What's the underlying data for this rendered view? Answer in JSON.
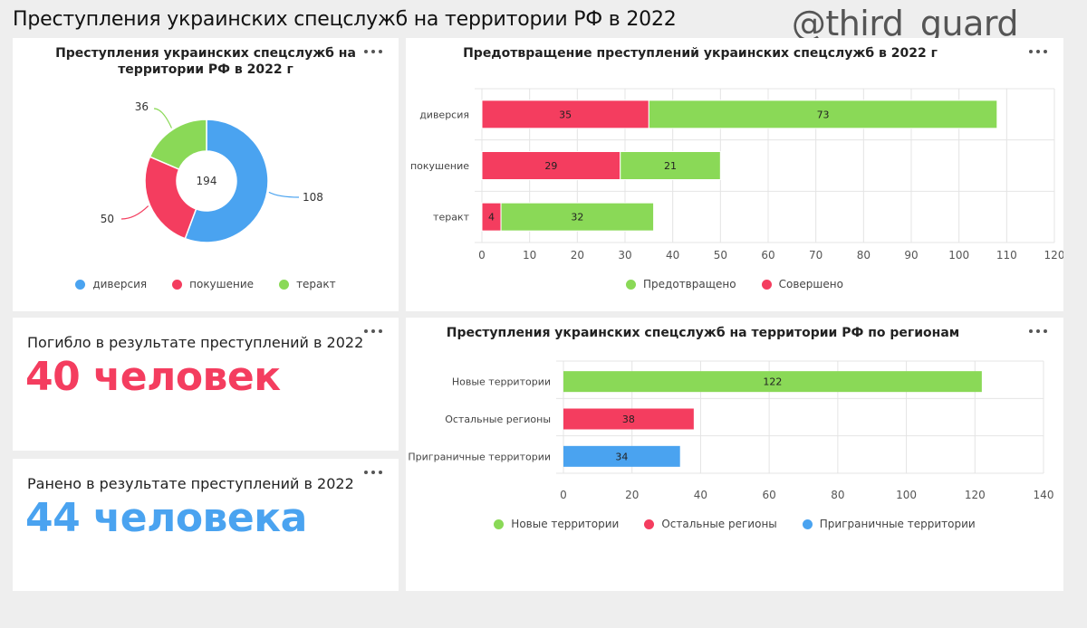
{
  "header": {
    "title": "Преступления украинских спецслужб на территории РФ в 2022",
    "watermark": "@third_guard"
  },
  "colors": {
    "blue": "#4aa3f0",
    "red": "#f43d5f",
    "green": "#8ad957"
  },
  "donut_card": {
    "title_line1": "Преступления украинских спецслужб на",
    "title_line2": "территории РФ в 2022 г",
    "total": "194",
    "legend": [
      "диверсия",
      "покушение",
      "теракт"
    ]
  },
  "stacked_card": {
    "title": "Предотвращение преступлений украинских спецслужб в 2022 г",
    "legend": [
      "Предотвращено",
      "Совершено"
    ]
  },
  "killed_card": {
    "label": "Погибло в результате преступлений в 2022",
    "value": "40 человек"
  },
  "wounded_card": {
    "label": "Ранено в результате преступлений в 2022",
    "value": "44 человека"
  },
  "regions_card": {
    "title": "Преступления украинских спецслужб на территории РФ по регионам",
    "legend": [
      "Новые территории",
      "Остальные регионы",
      "Приграничные территории"
    ]
  },
  "chart_data": [
    {
      "type": "pie",
      "title": "Преступления украинских спецслужб на территории РФ в 2022 г",
      "categories": [
        "диверсия",
        "покушение",
        "теракт"
      ],
      "values": [
        108,
        50,
        36
      ],
      "total": 194,
      "colors": [
        "#4aa3f0",
        "#f43d5f",
        "#8ad957"
      ],
      "legend_position": "bottom"
    },
    {
      "type": "bar",
      "orientation": "horizontal",
      "stacked": true,
      "title": "Предотвращение преступлений украинских спецслужб в 2022 г",
      "categories": [
        "диверсия",
        "покушение",
        "теракт"
      ],
      "series": [
        {
          "name": "Совершено",
          "values": [
            35,
            29,
            4
          ],
          "color": "#f43d5f"
        },
        {
          "name": "Предотвращено",
          "values": [
            73,
            21,
            32
          ],
          "color": "#8ad957"
        }
      ],
      "xlim": [
        0,
        120
      ],
      "xticks": [
        0,
        10,
        20,
        30,
        40,
        50,
        60,
        70,
        80,
        90,
        100,
        110,
        120
      ],
      "grid": true,
      "legend_position": "bottom"
    },
    {
      "type": "bar",
      "orientation": "horizontal",
      "title": "Преступления украинских спецслужб на территории РФ по регионам",
      "categories": [
        "Новые территории",
        "Остальные регионы",
        "Приграничные территории"
      ],
      "values": [
        122,
        38,
        34
      ],
      "colors": [
        "#8ad957",
        "#f43d5f",
        "#4aa3f0"
      ],
      "xlim": [
        0,
        140
      ],
      "xticks": [
        0,
        20,
        40,
        60,
        80,
        100,
        120,
        140
      ],
      "grid": true,
      "legend_position": "bottom"
    }
  ]
}
